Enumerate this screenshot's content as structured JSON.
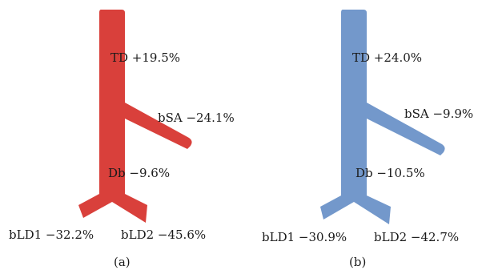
{
  "panel_a": {
    "color": "#d9403b",
    "labels": {
      "td": "TD +19.5%",
      "bsa": "bSA −24.1%",
      "db": "Db −9.6%",
      "bld1": "bLD1 −32.2%",
      "bld2": "bLD2 −45.6%"
    },
    "caption": "(a)"
  },
  "panel_b": {
    "color": "#7398cb",
    "labels": {
      "td": "TD +24.0%",
      "bsa": "bSA −9.9%",
      "db": "Db −10.5%",
      "bld1": "bLD1 −30.9%",
      "bld2": "bLD2 −42.7%"
    },
    "caption": "(b)"
  }
}
